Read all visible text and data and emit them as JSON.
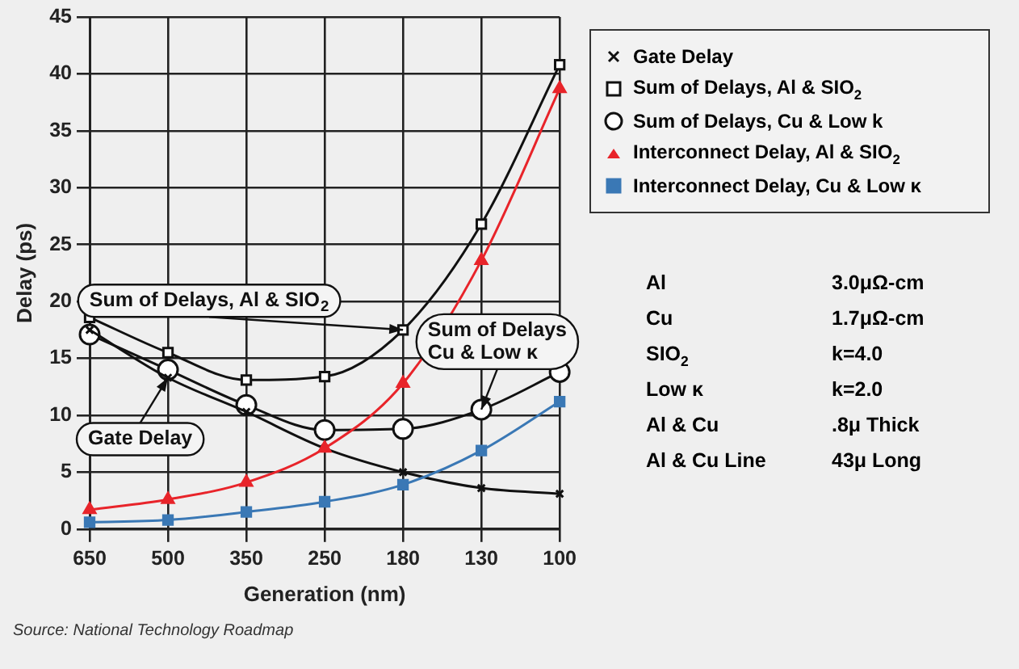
{
  "chart_data": {
    "type": "line",
    "xlabel": "Generation (nm)",
    "ylabel": "Delay (ps)",
    "categories": [
      "650",
      "500",
      "350",
      "250",
      "180",
      "130",
      "100"
    ],
    "ylim": [
      0,
      45
    ],
    "yticks": [
      0,
      5,
      10,
      15,
      20,
      25,
      30,
      35,
      40,
      45
    ],
    "grid": true,
    "legend": "right",
    "series": [
      {
        "name": "Gate Delay",
        "color": "#111111",
        "marker": "cross",
        "values": [
          17.5,
          13.3,
          10.3,
          7.1,
          5.0,
          3.6,
          3.1
        ]
      },
      {
        "name": "Sum of Delays, Al & SIO$_{2}$",
        "color": "#111111",
        "marker": "square",
        "values": [
          18.6,
          15.5,
          13.1,
          13.4,
          17.5,
          26.8,
          40.8
        ]
      },
      {
        "name": "Sum of Delays, Cu & Low k",
        "color": "#111111",
        "marker": "circle",
        "values": [
          17.1,
          14.0,
          10.9,
          8.7,
          8.8,
          10.5,
          13.8
        ]
      },
      {
        "name": "Interconnect Delay, Al & SIO$_{2}$",
        "color": "#e8242a",
        "marker": "triangle",
        "values": [
          1.7,
          2.6,
          4.1,
          7.1,
          12.8,
          23.6,
          38.7
        ]
      },
      {
        "name": "Interconnect Delay, Cu & Low κ",
        "color": "#3a78b5",
        "marker": "square",
        "values": [
          0.6,
          0.8,
          1.5,
          2.4,
          3.9,
          6.9,
          11.2
        ]
      }
    ],
    "annotations": [
      {
        "text": "Sum of Delays, Al & SIO$_{2}$",
        "x": "180",
        "y": 17.5
      },
      {
        "text": "Gate Delay",
        "x": "500",
        "y": 13.3
      },
      {
        "text": "Sum of Delays\nCu & Low κ",
        "x": "130",
        "y": 10.5
      },
      "Al\t3.0μΩ-cm",
      "Cu\t1.7μΩ-cm",
      "SIO$_{2}$\tk=4.0",
      "Low κ\tk=2.0",
      "Al & Cu\t.8μ Thick",
      "Al & Cu Line\t43μ Long",
      "Source: National Technology Roadmap"
    ]
  }
}
